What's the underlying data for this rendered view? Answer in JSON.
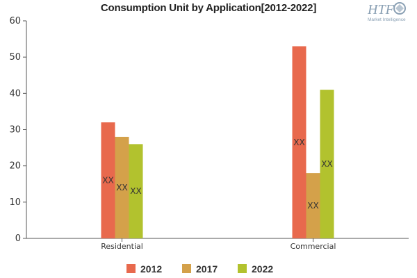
{
  "chart_data": {
    "type": "bar",
    "title": "Consumption Unit by  Application[2012-2022]",
    "categories": [
      "Residential",
      "Commercial"
    ],
    "series": [
      {
        "name": "2012",
        "values": [
          32,
          53
        ],
        "color": "#e8694d",
        "data_labels": [
          "XX",
          "XX"
        ]
      },
      {
        "name": "2017",
        "values": [
          28,
          18
        ],
        "color": "#d4a14a",
        "data_labels": [
          "XX",
          "XX"
        ]
      },
      {
        "name": "2022",
        "values": [
          26,
          41
        ],
        "color": "#b2c22e",
        "data_labels": [
          "XX",
          "XX"
        ]
      }
    ],
    "ylim": [
      0,
      60
    ],
    "yticks": [
      0,
      10,
      20,
      30,
      40,
      50,
      60
    ],
    "grid": false,
    "legend_position": "bottom-center"
  },
  "logo": {
    "text": "HTF",
    "subtext": "Market Intelligence",
    "color": "#8aa0b4"
  }
}
